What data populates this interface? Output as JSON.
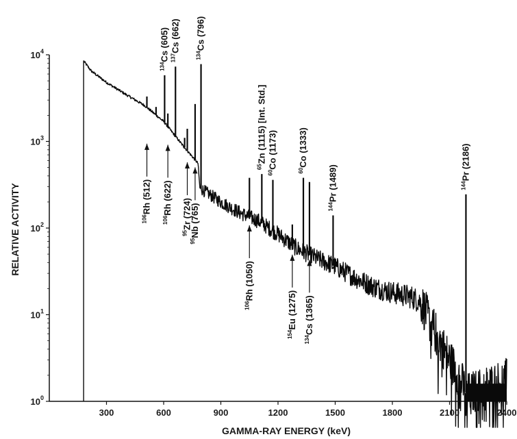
{
  "chart_data": {
    "type": "line",
    "xlabel": "GAMMA-RAY ENERGY (keV)",
    "ylabel": "RELATIVE ACTIVITY",
    "xlim": [
      0,
      2400
    ],
    "ylim": [
      1,
      10000
    ],
    "yscale": "log",
    "x_ticks": [
      300,
      600,
      900,
      1200,
      1500,
      1800,
      2100,
      2400
    ],
    "x_tick_labels": [
      "300",
      "600",
      "900",
      "1200",
      "1500",
      "1800",
      "2100",
      "2400"
    ],
    "y_ticks": [
      {
        "value": 1,
        "base": "10",
        "exp": "0"
      },
      {
        "value": 10,
        "base": "10",
        "exp": "1"
      },
      {
        "value": 100,
        "base": "10",
        "exp": "2"
      },
      {
        "value": 1000,
        "base": "10",
        "exp": "3"
      },
      {
        "value": 10000,
        "base": "10",
        "exp": "4"
      }
    ],
    "grid": false,
    "continuum": [
      [
        180,
        8500
      ],
      [
        220,
        6500
      ],
      [
        300,
        4800
      ],
      [
        400,
        3500
      ],
      [
        500,
        2600
      ],
      [
        600,
        1700
      ],
      [
        700,
        900
      ],
      [
        780,
        560
      ],
      [
        790,
        290
      ],
      [
        900,
        200
      ],
      [
        1000,
        150
      ],
      [
        1100,
        120
      ],
      [
        1200,
        85
      ],
      [
        1300,
        58
      ],
      [
        1400,
        45
      ],
      [
        1500,
        36
      ],
      [
        1600,
        27
      ],
      [
        1700,
        21
      ],
      [
        1800,
        18
      ],
      [
        1900,
        16
      ],
      [
        1950,
        14
      ],
      [
        2000,
        8
      ],
      [
        2050,
        5
      ],
      [
        2100,
        3
      ],
      [
        2150,
        2
      ],
      [
        2190,
        1.2
      ],
      [
        2300,
        1.5
      ],
      [
        2400,
        1.8
      ]
    ],
    "peaks": [
      {
        "x": 512,
        "y": 3300
      },
      {
        "x": 560,
        "y": 2500
      },
      {
        "x": 605,
        "y": 5800
      },
      {
        "x": 622,
        "y": 2100
      },
      {
        "x": 662,
        "y": 7300
      },
      {
        "x": 710,
        "y": 1100
      },
      {
        "x": 724,
        "y": 1400
      },
      {
        "x": 765,
        "y": 2700
      },
      {
        "x": 796,
        "y": 7800
      },
      {
        "x": 1050,
        "y": 380
      },
      {
        "x": 1115,
        "y": 420
      },
      {
        "x": 1173,
        "y": 360
      },
      {
        "x": 1275,
        "y": 110
      },
      {
        "x": 1333,
        "y": 380
      },
      {
        "x": 1365,
        "y": 340
      },
      {
        "x": 1489,
        "y": 140
      },
      {
        "x": 2186,
        "y": 245
      }
    ],
    "annotations": [
      {
        "nuc": "134",
        "el": "Cs",
        "e": "(605)",
        "pos": "above",
        "x": 605,
        "y": 5800
      },
      {
        "nuc": "137",
        "el": "Cs",
        "e": "(662)",
        "pos": "above",
        "x": 662,
        "y": 7300
      },
      {
        "nuc": "134",
        "el": "Cs",
        "e": "(796)",
        "pos": "above",
        "x": 796,
        "y": 7800
      },
      {
        "nuc": "65",
        "el": "Zn",
        "e": "(1115) [Int. Std.]",
        "pos": "above",
        "x": 1115,
        "y": 420
      },
      {
        "nuc": "60",
        "el": "Co",
        "e": "(1173)",
        "pos": "above",
        "x": 1173,
        "y": 360
      },
      {
        "nuc": "60",
        "el": "Co",
        "e": "(1333)",
        "pos": "above",
        "x": 1333,
        "y": 380
      },
      {
        "nuc": "144",
        "el": "Pr",
        "e": "(1489)",
        "pos": "above",
        "x": 1489,
        "y": 140
      },
      {
        "nuc": "144",
        "el": "Pr",
        "e": "(2186)",
        "pos": "above",
        "x": 2186,
        "y": 245
      },
      {
        "nuc": "106",
        "el": "Rh",
        "e": "(512)",
        "pos": "below",
        "x": 512,
        "y": 1050
      },
      {
        "nuc": "106",
        "el": "Rh",
        "e": "(622)",
        "pos": "below",
        "x": 622,
        "y": 1020
      },
      {
        "nuc": "95",
        "el": "Zr",
        "e": "(724)",
        "pos": "below",
        "x": 724,
        "y": 640
      },
      {
        "nuc": "95",
        "el": "Nb",
        "e": "(765)",
        "pos": "below",
        "x": 765,
        "y": 560
      },
      {
        "nuc": "106",
        "el": "Rh",
        "e": "(1050)",
        "pos": "below",
        "x": 1050,
        "y": 120
      },
      {
        "nuc": "154",
        "el": "Eu",
        "e": "(1275)",
        "pos": "below",
        "x": 1275,
        "y": 55
      },
      {
        "nuc": "134",
        "el": "Cs",
        "e": "(1365)",
        "pos": "below",
        "x": 1365,
        "y": 48
      }
    ]
  }
}
